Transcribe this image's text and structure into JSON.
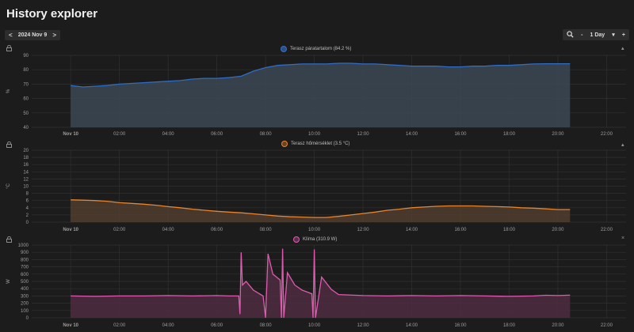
{
  "page": {
    "title": "History explorer"
  },
  "date_nav": {
    "prev": "<",
    "date": "2024 Nov 9",
    "next": ">"
  },
  "zoom": {
    "minus": "-",
    "range": "1 Day",
    "caret": "▾",
    "plus": "+"
  },
  "icons": {
    "lock": "lock-icon",
    "zoom": "magnifier-icon",
    "collapse": "caret-icon",
    "close": "close-icon"
  },
  "panel_controls": {
    "collapse_symbol": "▴",
    "close_symbol": "×"
  },
  "chart_data": [
    {
      "type": "area",
      "legend": "Terasz páratartalom (84.2 %)",
      "color": "#2f6cc4",
      "fill": "rgba(60,72,84,0.85)",
      "ylabel": "%",
      "ylim": [
        40,
        90
      ],
      "yticks": [
        "40",
        "50",
        "60",
        "70",
        "80",
        "90"
      ],
      "xticks": [
        "Nov 10",
        "02:00",
        "04:00",
        "06:00",
        "08:00",
        "10:00",
        "12:00",
        "14:00",
        "16:00",
        "18:00",
        "20:00",
        "22:00"
      ],
      "x": [
        0,
        0.5,
        1,
        1.5,
        2,
        2.5,
        3,
        3.5,
        4,
        4.5,
        5,
        5.5,
        6,
        6.5,
        7,
        7.5,
        8,
        8.5,
        9,
        9.5,
        10,
        10.5,
        11,
        11.5,
        12,
        12.5,
        13,
        13.5,
        14,
        14.5,
        15,
        15.5,
        16,
        16.5,
        17,
        17.5,
        18,
        18.5,
        19,
        19.5,
        20,
        20.5
      ],
      "values": [
        69,
        68,
        68.5,
        69,
        70,
        70.5,
        71,
        71.5,
        72,
        72.5,
        73.5,
        74,
        74,
        74.5,
        75.5,
        79,
        81.5,
        83,
        83.5,
        84,
        84,
        84,
        84.5,
        84.5,
        84,
        84,
        83.5,
        83,
        82.5,
        82.5,
        82.5,
        82,
        82,
        82.5,
        82.5,
        83,
        83,
        83.5,
        84,
        84.2,
        84.2,
        84.2
      ]
    },
    {
      "type": "area",
      "legend": "Terasz hőmérséklet (3.5 °C)",
      "color": "#e8852c",
      "fill": "rgba(84,64,48,0.8)",
      "ylabel": "°C",
      "ylim": [
        0,
        20
      ],
      "yticks": [
        "0",
        "2",
        "4",
        "6",
        "8",
        "10",
        "12",
        "14",
        "16",
        "18",
        "20"
      ],
      "xticks": [
        "Nov 10",
        "02:00",
        "04:00",
        "06:00",
        "08:00",
        "10:00",
        "12:00",
        "14:00",
        "16:00",
        "18:00",
        "20:00",
        "22:00"
      ],
      "x": [
        0,
        0.5,
        1,
        1.5,
        2,
        2.5,
        3,
        3.5,
        4,
        4.5,
        5,
        5.5,
        6,
        6.5,
        7,
        7.5,
        8,
        8.5,
        9,
        9.5,
        10,
        10.5,
        11,
        11.5,
        12,
        12.5,
        13,
        13.5,
        14,
        14.5,
        15,
        15.5,
        16,
        16.5,
        17,
        17.5,
        18,
        18.5,
        19,
        19.5,
        20,
        20.5
      ],
      "values": [
        6.2,
        6.1,
        6.0,
        5.8,
        5.4,
        5.2,
        5.0,
        4.7,
        4.3,
        4.0,
        3.6,
        3.3,
        3.0,
        2.8,
        2.6,
        2.3,
        2.0,
        1.7,
        1.5,
        1.4,
        1.3,
        1.3,
        1.6,
        2.0,
        2.4,
        2.8,
        3.3,
        3.6,
        4.0,
        4.2,
        4.4,
        4.5,
        4.5,
        4.5,
        4.4,
        4.3,
        4.2,
        4.0,
        3.9,
        3.7,
        3.5,
        3.5
      ]
    },
    {
      "type": "area",
      "legend": "Klíma (310.9 W)",
      "color": "#e05bb0",
      "fill": "rgba(78,44,64,0.85)",
      "ylabel": "W",
      "ylim": [
        0,
        1000
      ],
      "yticks": [
        "0",
        "100",
        "200",
        "300",
        "400",
        "500",
        "600",
        "700",
        "800",
        "900",
        "1000"
      ],
      "xticks": [
        "Nov 10",
        "02:00",
        "04:00",
        "06:00",
        "08:00",
        "10:00",
        "12:00",
        "14:00",
        "16:00",
        "18:00",
        "20:00",
        "22:00"
      ],
      "x": [
        0,
        1,
        2,
        3,
        4,
        5,
        6,
        6.5,
        6.9,
        6.95,
        7.0,
        7.05,
        7.2,
        7.5,
        7.9,
        8.0,
        8.1,
        8.3,
        8.6,
        8.65,
        8.7,
        8.75,
        8.9,
        9.2,
        9.5,
        9.9,
        9.95,
        10.0,
        10.05,
        10.3,
        10.7,
        11,
        12,
        13,
        14,
        15,
        16,
        17,
        18,
        19,
        19.5,
        20,
        20.5
      ],
      "values": [
        300,
        295,
        300,
        300,
        305,
        300,
        305,
        300,
        300,
        50,
        900,
        450,
        500,
        380,
        300,
        0,
        880,
        600,
        520,
        0,
        950,
        0,
        620,
        450,
        380,
        330,
        0,
        940,
        0,
        560,
        390,
        320,
        305,
        300,
        305,
        300,
        305,
        300,
        295,
        300,
        310,
        305,
        311
      ]
    }
  ]
}
